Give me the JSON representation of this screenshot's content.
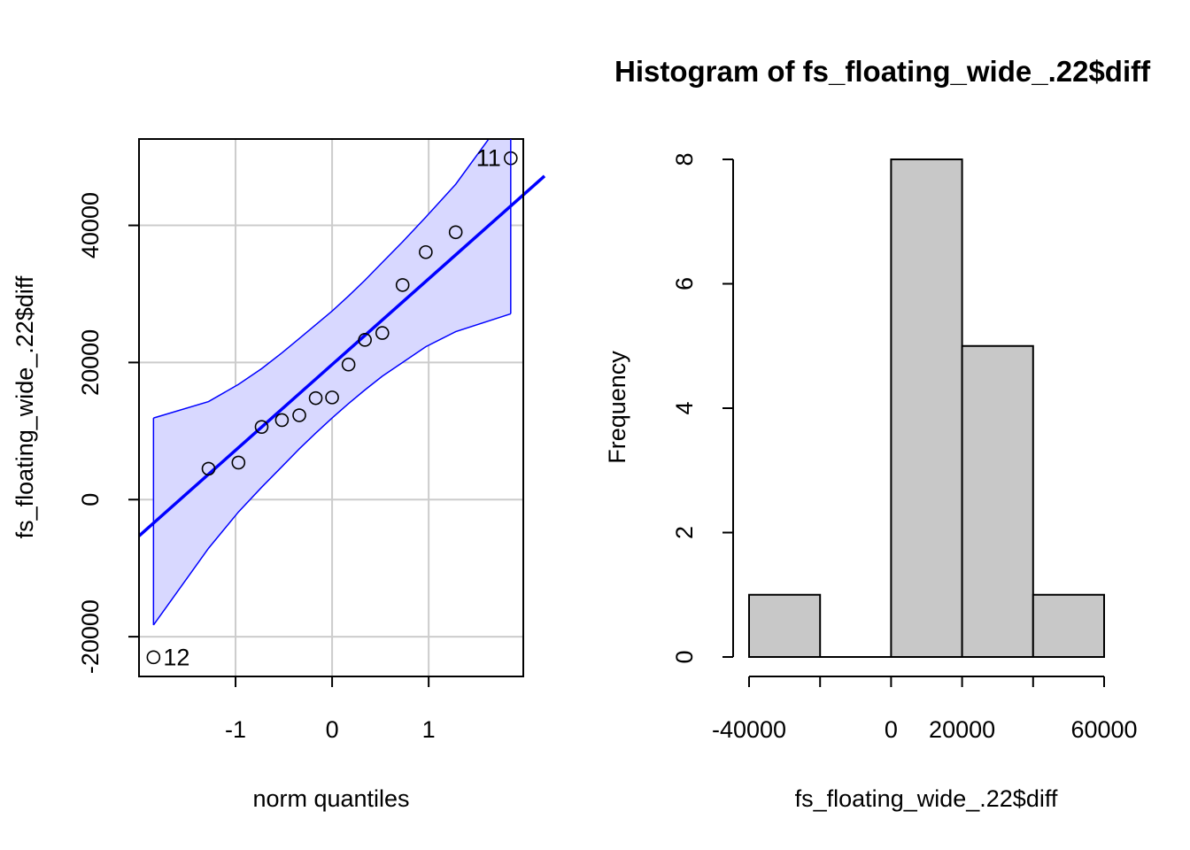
{
  "chart_data": [
    {
      "type": "scatter",
      "subtype": "qq-plot",
      "title": "",
      "xlabel": "norm quantiles",
      "ylabel": "fs_floating_wide_.22$diff",
      "xlim": [
        -2.0,
        1.98
      ],
      "ylim": [
        -25800,
        52600
      ],
      "xticks": [
        -1,
        0,
        1
      ],
      "yticks": [
        -20000,
        0,
        20000,
        40000
      ],
      "grid": true,
      "colors": {
        "line": "#0000ff",
        "band": "#d8d8ff",
        "grid": "#cccccc"
      },
      "points": [
        {
          "x": -1.85,
          "y": -23000,
          "label": "12"
        },
        {
          "x": -1.28,
          "y": 4500
        },
        {
          "x": -0.97,
          "y": 5400
        },
        {
          "x": -0.73,
          "y": 10600
        },
        {
          "x": -0.52,
          "y": 11600
        },
        {
          "x": -0.34,
          "y": 12300
        },
        {
          "x": -0.17,
          "y": 14800
        },
        {
          "x": 0.0,
          "y": 14900
        },
        {
          "x": 0.17,
          "y": 19700
        },
        {
          "x": 0.34,
          "y": 23300
        },
        {
          "x": 0.52,
          "y": 24300
        },
        {
          "x": 0.73,
          "y": 31300
        },
        {
          "x": 0.97,
          "y": 36100
        },
        {
          "x": 1.28,
          "y": 39000
        },
        {
          "x": 1.85,
          "y": 49800,
          "label": "11"
        }
      ],
      "reference_line": {
        "intercept": 19700,
        "slope": 12500
      },
      "envelope": {
        "x": [
          -1.85,
          -1.28,
          -0.97,
          -0.73,
          -0.52,
          -0.34,
          -0.17,
          0.0,
          0.17,
          0.34,
          0.52,
          0.73,
          0.97,
          1.28,
          1.85
        ],
        "upper": [
          11900,
          14300,
          16800,
          19100,
          21400,
          23500,
          25500,
          27500,
          29700,
          32000,
          34600,
          37600,
          41200,
          46000,
          57000
        ],
        "lower": [
          -18300,
          -7100,
          -1800,
          1800,
          4800,
          7400,
          9700,
          11900,
          14000,
          16000,
          18000,
          20000,
          22300,
          24500,
          27100
        ]
      }
    },
    {
      "type": "bar",
      "subtype": "histogram",
      "title": "Histogram of fs_floating_wide_.22$diff",
      "xlabel": "fs_floating_wide_.22$diff",
      "ylabel": "Frequency",
      "bins": [
        {
          "from": -40000,
          "to": -20000,
          "count": 1
        },
        {
          "from": -20000,
          "to": 0,
          "count": 0
        },
        {
          "from": 0,
          "to": 20000,
          "count": 8
        },
        {
          "from": 20000,
          "to": 40000,
          "count": 5
        },
        {
          "from": 40000,
          "to": 60000,
          "count": 1
        }
      ],
      "xticks": [
        -40000,
        -20000,
        0,
        20000,
        40000,
        60000
      ],
      "xtick_labels": [
        "-40000",
        "",
        "0",
        "20000",
        "",
        "60000"
      ],
      "yticks": [
        0,
        2,
        4,
        6,
        8
      ],
      "ylim": [
        0,
        8
      ],
      "grid": false,
      "colors": {
        "bar_fill": "#c8c8c8",
        "bar_stroke": "#000000"
      }
    }
  ]
}
